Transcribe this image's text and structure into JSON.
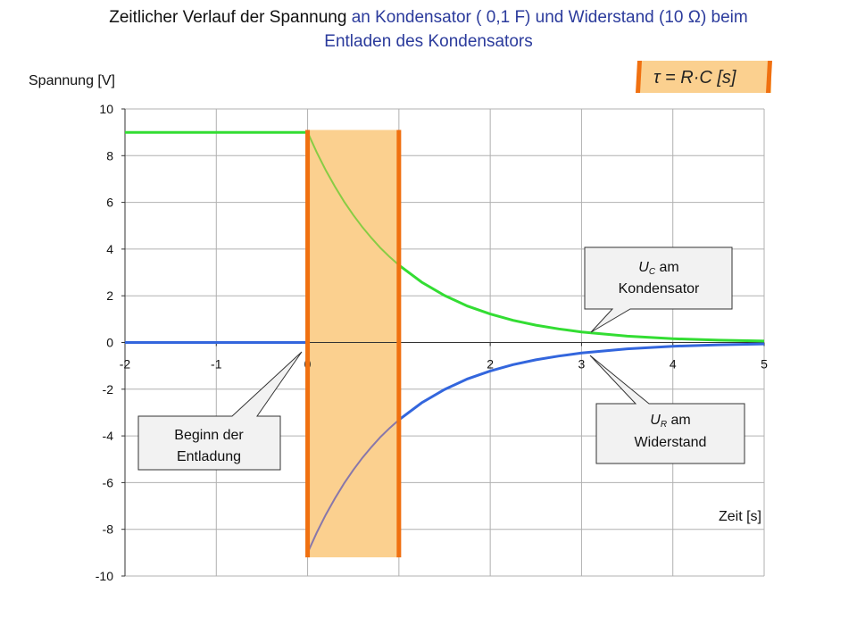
{
  "title": {
    "part1": "Zeitlicher Verlauf der Spannung",
    "part2": "an Kondensator ( 0,1 F)  und Widerstand (10 Ω) beim",
    "line2": "Entladen des Kondensators"
  },
  "formula": "τ = R·C  [s]",
  "callouts": {
    "uc_symbol": "U",
    "uc_sub": "C",
    "uc_rest": " am",
    "uc_line2": "Kondensator",
    "ur_symbol": "U",
    "ur_sub": "R",
    "ur_rest": " am",
    "ur_line2": "Widerstand",
    "start_line1": "Beginn der",
    "start_line2": "Entladung"
  },
  "colors": {
    "uc_line": "#33dd33",
    "ur_line": "#3366dd",
    "ur_line_tau": "#8877aa",
    "tau_band": "#fbd08f",
    "tau_edges": "#f07010",
    "grid": "#b0b0b0"
  },
  "chart_data": {
    "type": "line",
    "title": "Zeitlicher Verlauf der Spannung an Kondensator ( 0,1 F)  und Widerstand (10 Ω) beim Entladen des Kondensators",
    "xlabel": "Zeit [s]",
    "ylabel": "Spannung [V]",
    "xlim": [
      -2,
      5
    ],
    "ylim": [
      -10,
      10
    ],
    "xticks": [
      -2,
      -1,
      0,
      1,
      2,
      3,
      4,
      5
    ],
    "xtick_labels": [
      "-2",
      "-1",
      "0",
      "",
      "2",
      "3",
      "4",
      "5"
    ],
    "yticks": [
      -10,
      -8,
      -6,
      -4,
      -2,
      0,
      2,
      4,
      6,
      8,
      10
    ],
    "ytick_labels": [
      "-10",
      "-8",
      "-6",
      "-4",
      "-2",
      "0",
      "2",
      "4",
      "6",
      "8",
      "10"
    ],
    "grid": true,
    "series": [
      {
        "key": "uc",
        "x": [
          -2,
          -1.5,
          -1,
          -0.5,
          0,
          0.1,
          0.2,
          0.3,
          0.4,
          0.5,
          0.6,
          0.7,
          0.8,
          0.9,
          1.0,
          1.25,
          1.5,
          1.75,
          2.0,
          2.25,
          2.5,
          2.75,
          3.0,
          3.5,
          4.0,
          4.5,
          5.0
        ],
        "y": [
          9,
          9,
          9,
          9,
          9,
          8.14,
          7.37,
          6.67,
          6.03,
          5.46,
          4.94,
          4.47,
          4.04,
          3.66,
          3.31,
          2.58,
          2.01,
          1.56,
          1.22,
          0.95,
          0.74,
          0.58,
          0.45,
          0.27,
          0.16,
          0.1,
          0.06
        ]
      },
      {
        "key": "ur",
        "x": [
          -2,
          -1.5,
          -1,
          -0.5,
          0,
          0.1,
          0.2,
          0.3,
          0.4,
          0.5,
          0.6,
          0.7,
          0.8,
          0.9,
          1.0,
          1.25,
          1.5,
          1.75,
          2.0,
          2.25,
          2.5,
          2.75,
          3.0,
          3.5,
          4.0,
          4.5,
          5.0
        ],
        "y": [
          0,
          0,
          0,
          0,
          -9,
          -8.14,
          -7.37,
          -6.67,
          -6.03,
          -5.46,
          -4.94,
          -4.47,
          -4.04,
          -3.66,
          -3.31,
          -2.58,
          -2.01,
          -1.56,
          -1.22,
          -0.95,
          -0.74,
          -0.58,
          -0.45,
          -0.27,
          -0.16,
          -0.1,
          -0.06
        ]
      }
    ],
    "tau_band": {
      "x_start": 0,
      "x_end": 1,
      "y_start": -9.2,
      "y_end": 9.1
    }
  }
}
